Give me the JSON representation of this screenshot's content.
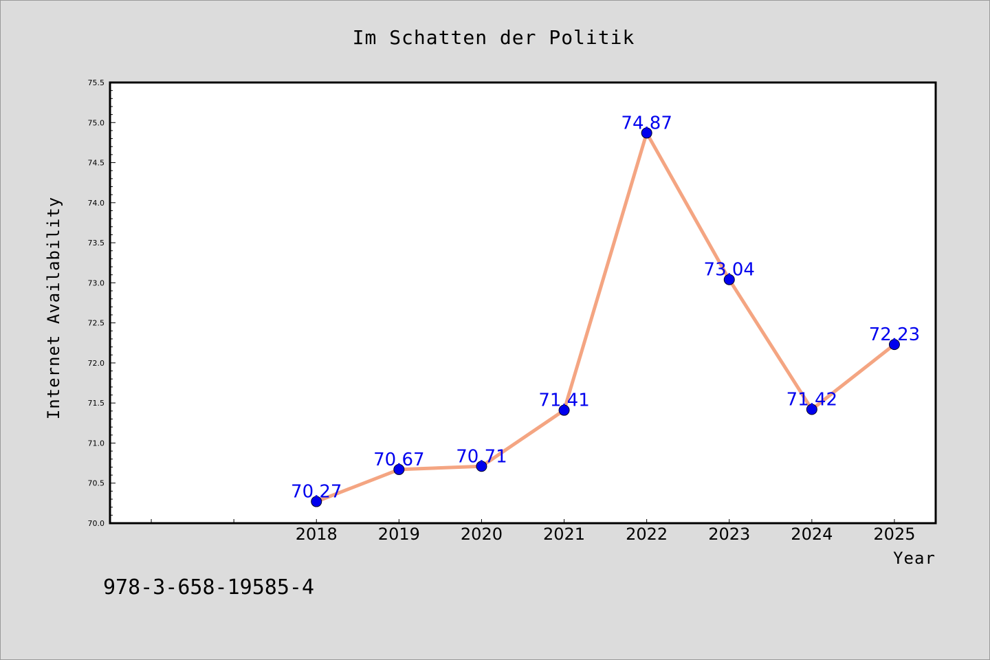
{
  "chart_data": {
    "type": "line",
    "title": "Im Schatten der Politik",
    "xlabel": "Year",
    "ylabel": "Internet Availability",
    "x": [
      "2018",
      "2019",
      "2020",
      "2021",
      "2022",
      "2023",
      "2024",
      "2025"
    ],
    "series": [
      {
        "values": [
          70.27,
          70.67,
          70.71,
          71.41,
          74.87,
          73.04,
          71.42,
          72.23
        ],
        "data_labels": [
          "70.27",
          "70.67",
          "70.71",
          "71.41",
          "74.87",
          "73.04",
          "71.42",
          "72.23"
        ]
      }
    ],
    "ylim": [
      70.0,
      75.5
    ],
    "yticks": [
      "70.0",
      "70.5",
      "71.0",
      "71.5",
      "72.0",
      "72.5",
      "73.0",
      "73.5",
      "74.0",
      "74.5",
      "75.0",
      "75.5"
    ],
    "grid": false,
    "legend": "none",
    "colors": {
      "line": "#f4a582",
      "marker": "#0000ee",
      "data_label": "#0000ee",
      "background": "#dcdcdc",
      "plot_background": "#ffffff"
    }
  },
  "footer": {
    "isbn": "978-3-658-19585-4"
  }
}
